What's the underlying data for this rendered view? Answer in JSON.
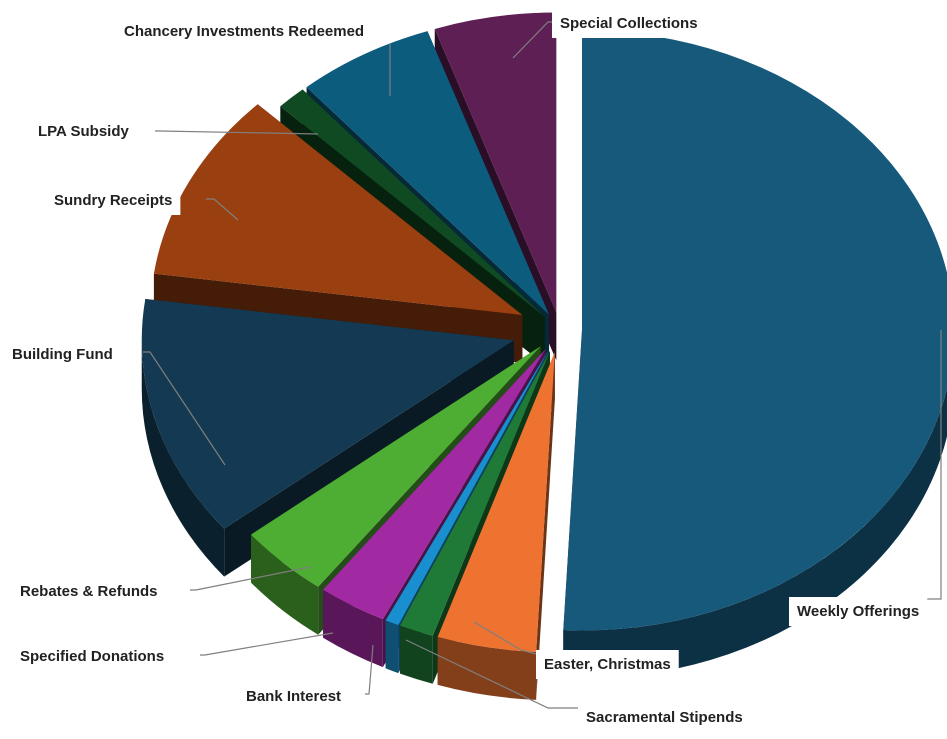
{
  "chart_data": {
    "type": "pie",
    "title": "",
    "style": "3d-exploded",
    "slices": [
      {
        "label": "Weekly Offerings",
        "value": 50.8,
        "color": "#17597b"
      },
      {
        "label": "Easter, Christmas",
        "value": 4.3,
        "color": "#ef7330"
      },
      {
        "label": "Sacramental Stipends",
        "value": 1.5,
        "color": "#1e7a36"
      },
      {
        "label": "Bank Interest",
        "value": 0.6,
        "color": "#1a8fd0"
      },
      {
        "label": "Specified Donations",
        "value": 3.0,
        "color": "#a12aa2"
      },
      {
        "label": "Rebates & Refunds",
        "value": 4.0,
        "color": "#4ead33"
      },
      {
        "label": "Building Fund",
        "value": 13.0,
        "color": "#133a52"
      },
      {
        "label": "Sundry Receipts",
        "value": 10.2,
        "color": "#9a3f10"
      },
      {
        "label": "LPA Subsidy",
        "value": 1.3,
        "color": "#0f4a22"
      },
      {
        "label": "Chancery Investments Redeemed",
        "value": 6.0,
        "color": "#0c5c7e"
      },
      {
        "label": "Special Collections",
        "value": 5.3,
        "color": "#5e1f55"
      }
    ]
  }
}
